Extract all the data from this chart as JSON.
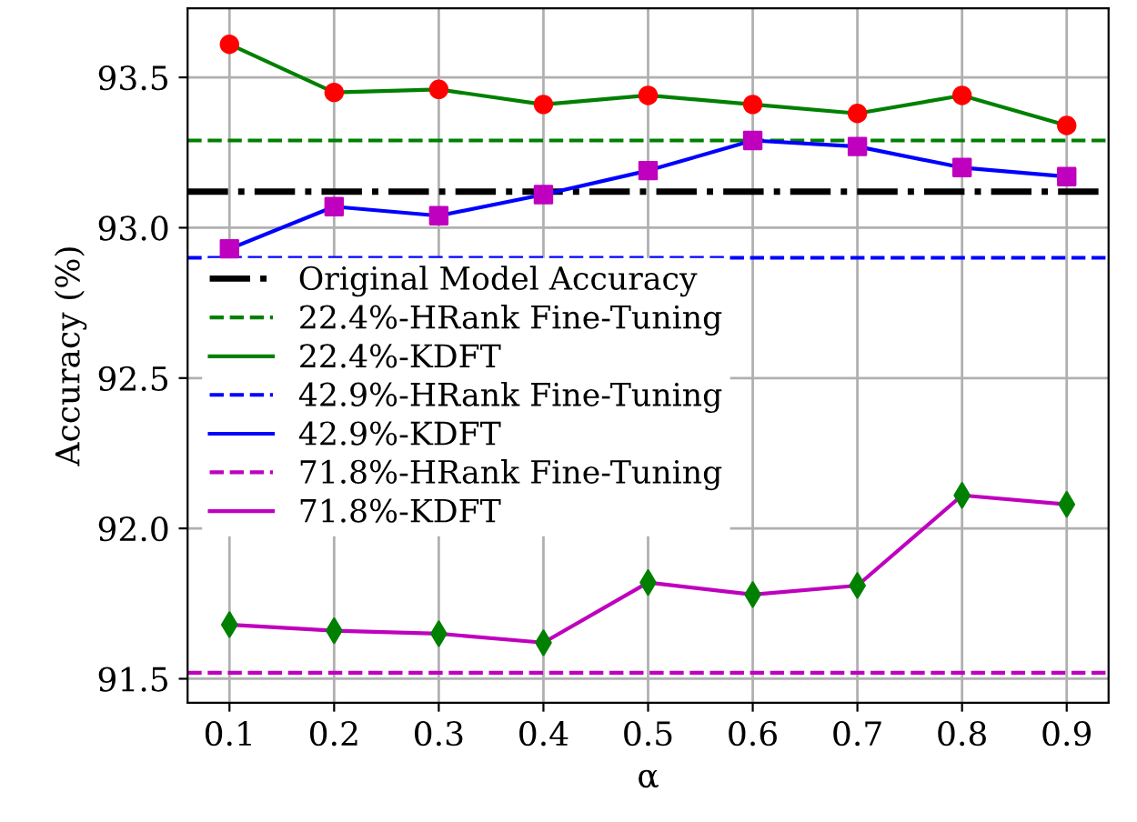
{
  "chart_data": {
    "type": "line",
    "xlabel": "α",
    "ylabel": "Accuracy (%)",
    "x": [
      0.1,
      0.2,
      0.3,
      0.4,
      0.5,
      0.6,
      0.7,
      0.8,
      0.9
    ],
    "xlim": [
      0.06,
      0.94
    ],
    "xticks": [
      0.1,
      0.2,
      0.3,
      0.4,
      0.5,
      0.6,
      0.7,
      0.8,
      0.9
    ],
    "ylim": [
      91.42,
      93.73
    ],
    "yticks": [
      91.5,
      {
        "value": 92.0,
        "label": "92.0"
      },
      92.5,
      {
        "value": 93.0,
        "label": "93.0"
      },
      93.5
    ],
    "grid": true,
    "legend": "center left",
    "ref_lines": [
      {
        "axis": "y",
        "value": 93.12,
        "label": "Original Model Accuracy",
        "color": "#000000",
        "line_style": "dashdot"
      },
      {
        "axis": "y",
        "value": 93.29,
        "label": "22.4%-HRank Fine-Tuning",
        "color": "#008000",
        "line_style": "dashed"
      },
      {
        "axis": "y",
        "value": 92.9,
        "label": "42.9%-HRank Fine-Tuning",
        "color": "#0000ff",
        "line_style": "dashed"
      },
      {
        "axis": "y",
        "value": 91.52,
        "label": "71.8%-HRank Fine-Tuning",
        "color": "#bf00bf",
        "line_style": "dashed"
      }
    ],
    "series": [
      {
        "name": "22.4%-KDFT",
        "color": "#008000",
        "marker": "circle",
        "colors": [
          "#ff0000",
          "#ff0000",
          "#ff0000",
          "#ff0000",
          "#ff0000",
          "#ff0000",
          "#ff0000",
          "#ff0000",
          "#ff0000"
        ],
        "values": [
          93.61,
          93.45,
          93.46,
          93.41,
          93.44,
          93.41,
          93.38,
          93.44,
          93.34
        ]
      },
      {
        "name": "42.9%-KDFT",
        "color": "#0000ff",
        "marker": "square",
        "colors": [
          "#bf00bf",
          "#bf00bf",
          "#bf00bf",
          "#bf00bf",
          "#bf00bf",
          "#bf00bf",
          "#bf00bf",
          "#bf00bf",
          "#bf00bf"
        ],
        "values": [
          92.93,
          93.07,
          93.04,
          93.11,
          93.19,
          93.29,
          93.27,
          93.2,
          93.17
        ]
      },
      {
        "name": "71.8%-KDFT",
        "color": "#bf00bf",
        "marker": "diamond",
        "colors": [
          "#008000",
          "#008000",
          "#008000",
          "#008000",
          "#008000",
          "#008000",
          "#008000",
          "#008000",
          "#008000"
        ],
        "values": [
          91.68,
          91.66,
          91.65,
          91.62,
          91.82,
          91.78,
          91.81,
          92.11,
          92.08
        ]
      }
    ]
  }
}
